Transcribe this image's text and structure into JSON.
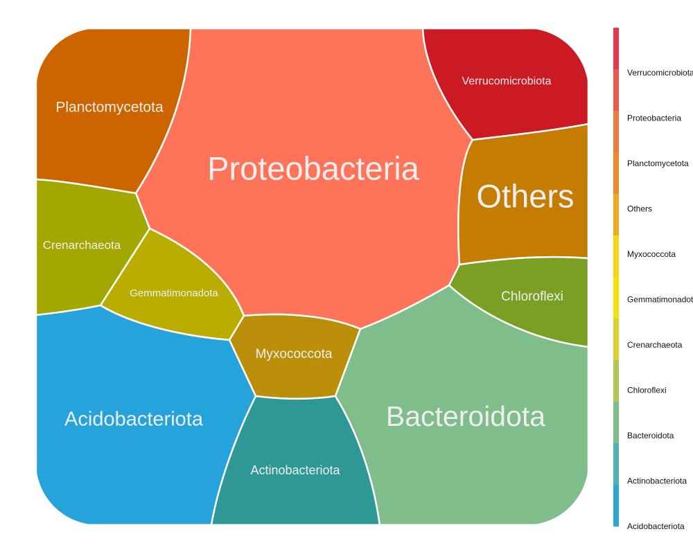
{
  "chart_data": {
    "type": "voronoi-treemap",
    "cells": [
      {
        "name": "Proteobacteria",
        "color": "#FF7358"
      },
      {
        "name": "Planctomycetota",
        "color": "#CC6500"
      },
      {
        "name": "Verrucomicrobiota",
        "color": "#CB1A24"
      },
      {
        "name": "Others",
        "color": "#C47D00"
      },
      {
        "name": "Chloroflexi",
        "color": "#7A9F22"
      },
      {
        "name": "Crenarchaeota",
        "color": "#A2A800"
      },
      {
        "name": "Gemmatimonadota",
        "color": "#BBAD00"
      },
      {
        "name": "Myxococcota",
        "color": "#BC8F0A"
      },
      {
        "name": "Acidobacteriota",
        "color": "#27A3DB"
      },
      {
        "name": "Actinobacteriota",
        "color": "#2E9894"
      },
      {
        "name": "Bacteroidota",
        "color": "#7FBD8B"
      }
    ],
    "legend": {
      "position": "right",
      "items": [
        "Verrucomicrobiota",
        "Proteobacteria",
        "Planctomycetota",
        "Others",
        "Myxococcota",
        "Gemmatimonadota",
        "Crenarchaeota",
        "Chloroflexi",
        "Bacteroidota",
        "Actinobacteriota",
        "Acidobacteriota"
      ],
      "gradient_colors": [
        "#E8374A",
        "#EB5B4B",
        "#EE7B3C",
        "#EA8B2E",
        "#EBAA20",
        "#F5D518",
        "#F3E20C",
        "#D6D230",
        "#B5C55A",
        "#7FBD8B",
        "#4FB3B4",
        "#2FA7D5"
      ]
    }
  }
}
